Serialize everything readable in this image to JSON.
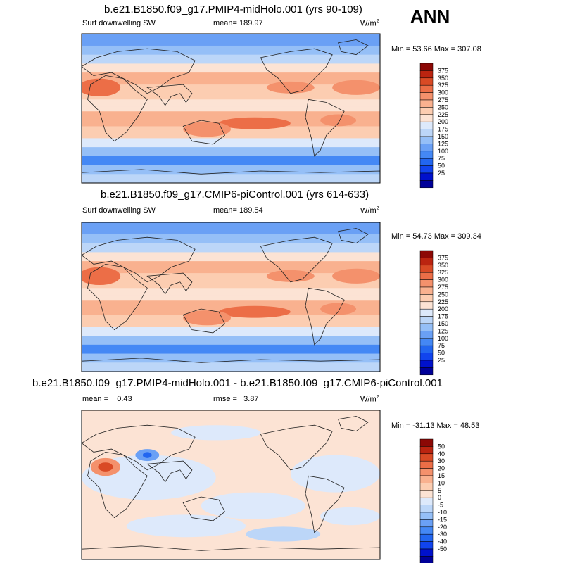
{
  "season": "ANN",
  "colors": {
    "panel_scale": [
      "#000099",
      "#0011cc",
      "#1144ee",
      "#2266f0",
      "#4488f5",
      "#6aa0f5",
      "#95bff7",
      "#bcd6f8",
      "#dde9fb",
      "#fce3d4",
      "#fccdb1",
      "#f9b18f",
      "#f4916c",
      "#ec6e47",
      "#d94a25",
      "#bb2410",
      "#8c0805"
    ],
    "diff_scale": [
      "#000099",
      "#0011cc",
      "#1144ee",
      "#2266f0",
      "#4488f5",
      "#6aa0f5",
      "#95bff7",
      "#bcd6f8",
      "#dde9fb",
      "#fce3d4",
      "#fccdb1",
      "#f9b18f",
      "#f4916c",
      "#ec6e47",
      "#d94a25",
      "#bb2410",
      "#8c0805"
    ],
    "land": "#222222",
    "frame": "#000000"
  },
  "panels": [
    {
      "title": "b.e21.B1850.f09_g17.PMIP4-midHolo.001 (yrs 90-109)",
      "left_label": "Surf downwelling SW",
      "center_label": "mean= 189.97",
      "units": "W/m",
      "units_sup": "2",
      "minmax": "Min =  53.66 Max = 307.08",
      "colorbar_labels": [
        "375",
        "350",
        "325",
        "300",
        "275",
        "250",
        "225",
        "200",
        "175",
        "150",
        "125",
        "100",
        "75",
        "50",
        "25"
      ]
    },
    {
      "title": "b.e21.B1850.f09_g17.CMIP6-piControl.001 (yrs 614-633)",
      "left_label": "Surf downwelling SW",
      "center_label": "mean= 189.54",
      "units": "W/m",
      "units_sup": "2",
      "minmax": "Min =  54.73 Max = 309.34",
      "colorbar_labels": [
        "375",
        "350",
        "325",
        "300",
        "275",
        "250",
        "225",
        "200",
        "175",
        "150",
        "125",
        "100",
        "75",
        "50",
        "25"
      ]
    },
    {
      "title": "b.e21.B1850.f09_g17.PMIP4-midHolo.001 - b.e21.B1850.f09_g17.CMIP6-piControl.001",
      "left_label": "mean =    0.43",
      "center_label": "rmse =   3.87",
      "units": "W/m",
      "units_sup": "2",
      "minmax": "Min = -31.13 Max =  48.53",
      "colorbar_labels": [
        "50",
        "40",
        "30",
        "20",
        "15",
        "10",
        "5",
        "0",
        "-5",
        "-10",
        "-15",
        "-20",
        "-30",
        "-40",
        "-50"
      ]
    }
  ],
  "chart_data": [
    {
      "type": "heatmap",
      "title": "b.e21.B1850.f09_g17.PMIP4-midHolo.001 (yrs 90-109)",
      "variable": "Surf downwelling SW",
      "units": "W/m2",
      "mean": 189.97,
      "min": 53.66,
      "max": 307.08,
      "levels": [
        25,
        50,
        75,
        100,
        125,
        150,
        175,
        200,
        225,
        250,
        275,
        300,
        325,
        350,
        375
      ]
    },
    {
      "type": "heatmap",
      "title": "b.e21.B1850.f09_g17.CMIP6-piControl.001 (yrs 614-633)",
      "variable": "Surf downwelling SW",
      "units": "W/m2",
      "mean": 189.54,
      "min": 54.73,
      "max": 309.34,
      "levels": [
        25,
        50,
        75,
        100,
        125,
        150,
        175,
        200,
        225,
        250,
        275,
        300,
        325,
        350,
        375
      ]
    },
    {
      "type": "heatmap",
      "title": "b.e21.B1850.f09_g17.PMIP4-midHolo.001 - b.e21.B1850.f09_g17.CMIP6-piControl.001",
      "units": "W/m2",
      "mean": 0.43,
      "rmse": 3.87,
      "min": -31.13,
      "max": 48.53,
      "levels": [
        -50,
        -40,
        -30,
        -20,
        -15,
        -10,
        -5,
        0,
        5,
        10,
        15,
        20,
        30,
        40,
        50
      ]
    }
  ]
}
